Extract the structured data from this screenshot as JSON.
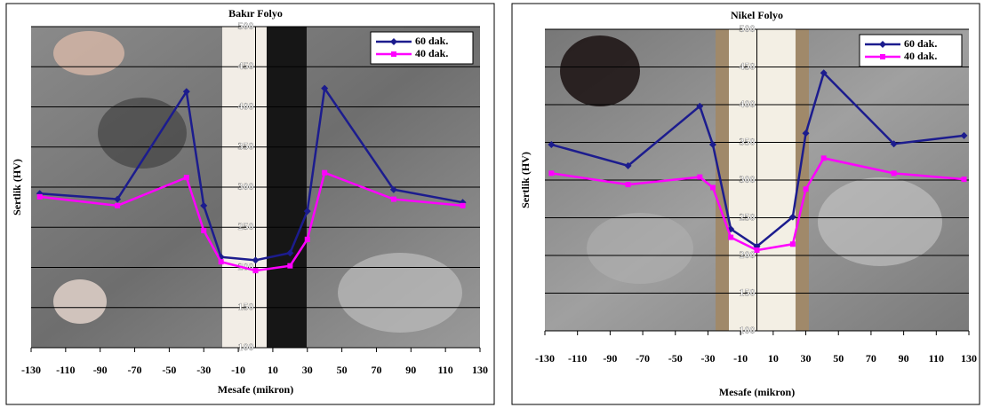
{
  "chart_data": [
    {
      "type": "line",
      "title": "Bakır Folyo",
      "x_label": "Mesafe (mikron)",
      "y_label": "Sertlik (HV)",
      "x": [
        -125,
        -80,
        -40,
        -30,
        -20,
        0,
        20,
        30,
        40,
        80,
        120
      ],
      "series": [
        {
          "name": "60 dak.",
          "color": "#1c1c8e",
          "marker": "diamond",
          "values": [
            292,
            285,
            419,
            277,
            213,
            209,
            218,
            270,
            423,
            297,
            281
          ]
        },
        {
          "name": "40 dak.",
          "color": "#ff00ff",
          "marker": "square",
          "values": [
            288,
            277,
            312,
            246,
            207,
            196,
            202,
            235,
            318,
            285,
            277
          ]
        }
      ],
      "xlim": [
        -130,
        130
      ],
      "xticks": [
        -130,
        -110,
        -90,
        -70,
        -50,
        -30,
        -10,
        10,
        30,
        50,
        70,
        90,
        110,
        130
      ],
      "ylim": [
        100,
        500
      ],
      "yticks": [
        100,
        150,
        200,
        250,
        300,
        350,
        400,
        450,
        500
      ],
      "grid": true,
      "legend": "top-right"
    },
    {
      "type": "line",
      "title": "Nikel Folyo",
      "x_label": "Mesafe (mikron)",
      "y_label": "Sertlik (HV)",
      "x": [
        -126,
        -79,
        -35,
        -27,
        -16,
        0,
        22,
        30,
        41,
        84,
        127
      ],
      "series": [
        {
          "name": "60 dak.",
          "color": "#1c1c8e",
          "marker": "diamond",
          "values": [
            347,
            319,
            398,
            347,
            235,
            212,
            251,
            362,
            442,
            348,
            359
          ]
        },
        {
          "name": "40 dak.",
          "color": "#ff00ff",
          "marker": "square",
          "values": [
            309,
            294,
            304,
            290,
            224,
            207,
            215,
            288,
            329,
            309,
            301
          ]
        }
      ],
      "xlim": [
        -130,
        130
      ],
      "xticks": [
        -130,
        -110,
        -90,
        -70,
        -50,
        -30,
        -10,
        10,
        30,
        50,
        70,
        90,
        110,
        130
      ],
      "ylim": [
        100,
        500
      ],
      "yticks": [
        100,
        150,
        200,
        250,
        300,
        350,
        400,
        450,
        500
      ],
      "grid": true,
      "legend": "top-right"
    }
  ]
}
